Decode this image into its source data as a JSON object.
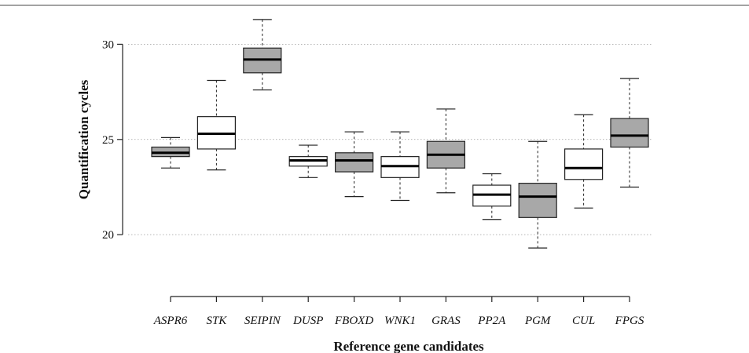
{
  "chart_data": {
    "type": "boxplot",
    "xlabel": "Reference gene candidates",
    "ylabel": "Quantification cycles",
    "ylim": [
      18.4,
      31.5
    ],
    "yticks": [
      20,
      25,
      30
    ],
    "grid": "horizontal dotted",
    "fill_colors": {
      "gray": "#a8a8a8",
      "white": "#ffffff"
    },
    "categories": [
      "ASPR6",
      "STK",
      "SEIPIN",
      "DUSP",
      "FBOXD",
      "WNK1",
      "GRAS",
      "PP2A",
      "PGM",
      "CUL",
      "FPGS"
    ],
    "boxes": [
      {
        "label": "ASPR6",
        "min": 23.5,
        "q1": 24.1,
        "median": 24.3,
        "q3": 24.6,
        "max": 25.1,
        "fill": "gray"
      },
      {
        "label": "STK",
        "min": 23.4,
        "q1": 24.5,
        "median": 25.3,
        "q3": 26.2,
        "max": 28.1,
        "fill": "white"
      },
      {
        "label": "SEIPIN",
        "min": 27.6,
        "q1": 28.5,
        "median": 29.2,
        "q3": 29.8,
        "max": 31.3,
        "fill": "gray"
      },
      {
        "label": "DUSP",
        "min": 23.0,
        "q1": 23.6,
        "median": 23.9,
        "q3": 24.1,
        "max": 24.7,
        "fill": "white"
      },
      {
        "label": "FBOXD",
        "min": 22.0,
        "q1": 23.3,
        "median": 23.9,
        "q3": 24.3,
        "max": 25.4,
        "fill": "gray"
      },
      {
        "label": "WNK1",
        "min": 21.8,
        "q1": 23.0,
        "median": 23.6,
        "q3": 24.1,
        "max": 25.4,
        "fill": "white"
      },
      {
        "label": "GRAS",
        "min": 22.2,
        "q1": 23.5,
        "median": 24.2,
        "q3": 24.9,
        "max": 26.6,
        "fill": "gray"
      },
      {
        "label": "PP2A",
        "min": 20.8,
        "q1": 21.5,
        "median": 22.1,
        "q3": 22.6,
        "max": 23.2,
        "fill": "white"
      },
      {
        "label": "PGM",
        "min": 19.3,
        "q1": 20.9,
        "median": 22.0,
        "q3": 22.7,
        "max": 24.9,
        "fill": "gray"
      },
      {
        "label": "CUL",
        "min": 21.4,
        "q1": 22.9,
        "median": 23.5,
        "q3": 24.5,
        "max": 26.3,
        "fill": "white"
      },
      {
        "label": "FPGS",
        "min": 22.5,
        "q1": 24.6,
        "median": 25.2,
        "q3": 26.1,
        "max": 28.2,
        "fill": "gray"
      }
    ]
  }
}
